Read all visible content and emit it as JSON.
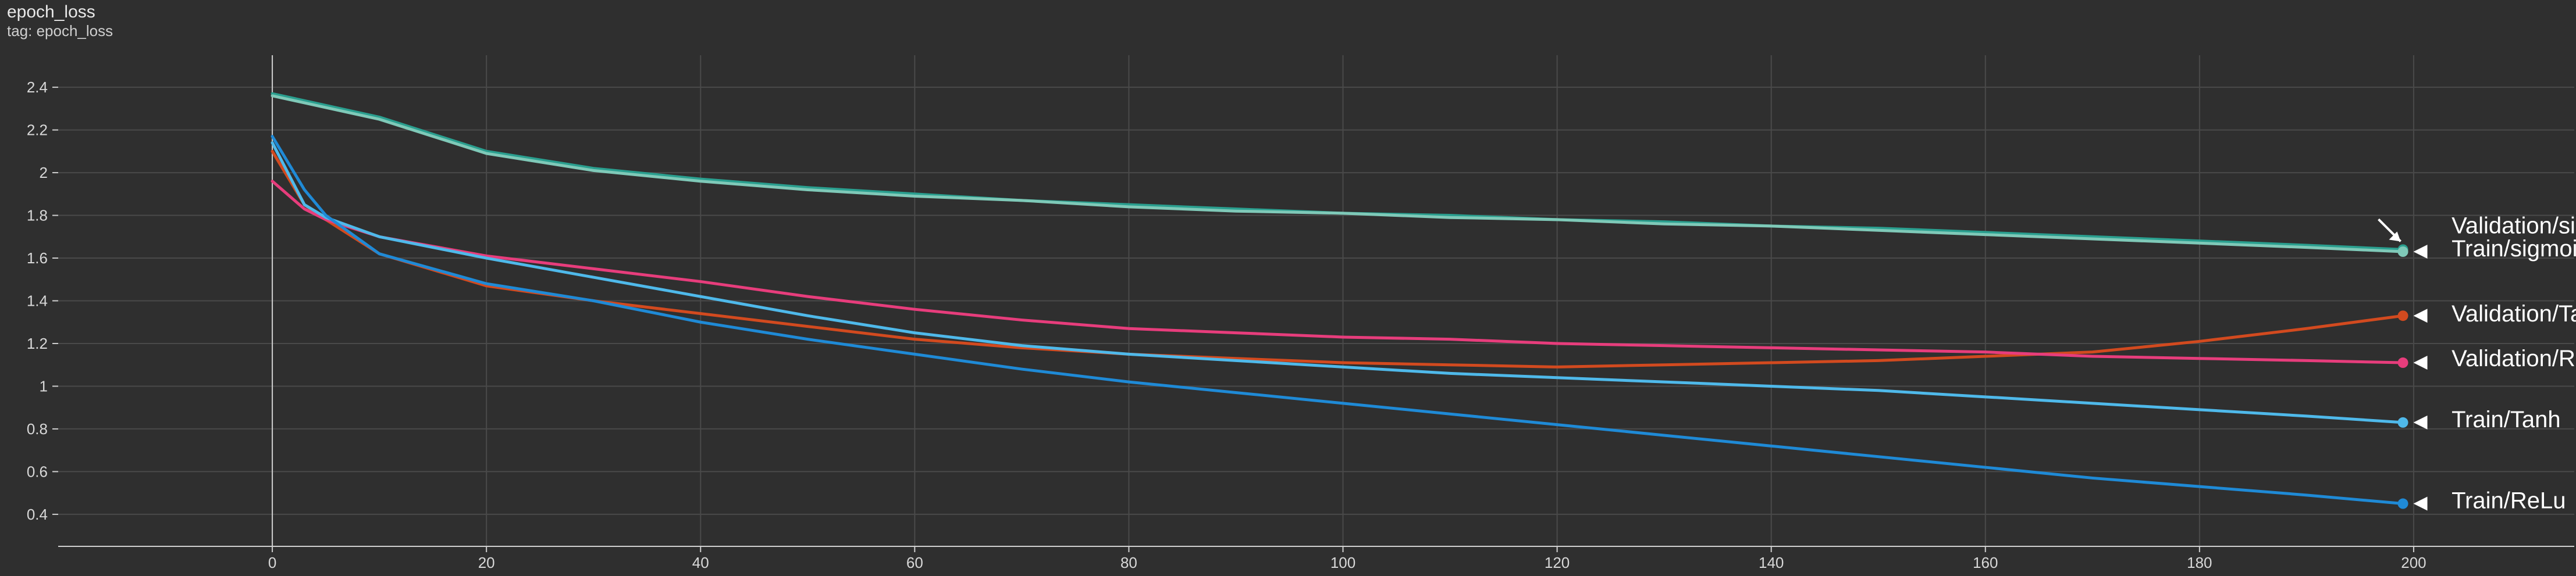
{
  "chart_data": {
    "type": "line",
    "title": "epoch_loss",
    "subtitle": "tag: epoch_loss",
    "xlim": [
      -20,
      215
    ],
    "ylim": [
      0.25,
      2.55
    ],
    "x_ticks": [
      0,
      20,
      40,
      60,
      80,
      100,
      120,
      140,
      160,
      180,
      200
    ],
    "y_ticks": [
      0.4,
      0.6,
      0.8,
      1,
      1.2,
      1.4,
      1.6,
      1.8,
      2,
      2.2,
      2.4
    ],
    "grid": true,
    "colors": {
      "background": "#2f2f2f",
      "grid": "#4a4a4a",
      "axis": "#d0d0d0",
      "validation_sigmoid": "#2a9f8f",
      "train_sigmoid": "#7fc9b8",
      "validation_tanh": "#d24a1f",
      "validation_relu": "#e73d7c",
      "train_tanh": "#4fb9ea",
      "train_relu": "#1f8ad6"
    },
    "series": [
      {
        "name": "Validation/sigmoid",
        "x": [
          0,
          10,
          20,
          30,
          40,
          50,
          60,
          70,
          80,
          90,
          100,
          110,
          120,
          130,
          140,
          150,
          160,
          170,
          180,
          190,
          199
        ],
        "values": [
          2.37,
          2.26,
          2.1,
          2.02,
          1.97,
          1.93,
          1.9,
          1.87,
          1.85,
          1.83,
          1.81,
          1.8,
          1.78,
          1.77,
          1.75,
          1.74,
          1.72,
          1.7,
          1.68,
          1.66,
          1.64
        ]
      },
      {
        "name": "Train/sigmoid",
        "x": [
          0,
          10,
          20,
          30,
          40,
          50,
          60,
          70,
          80,
          90,
          100,
          110,
          120,
          130,
          140,
          150,
          160,
          170,
          180,
          190,
          199
        ],
        "values": [
          2.36,
          2.25,
          2.09,
          2.01,
          1.96,
          1.92,
          1.89,
          1.87,
          1.84,
          1.82,
          1.81,
          1.79,
          1.78,
          1.76,
          1.75,
          1.73,
          1.71,
          1.69,
          1.67,
          1.65,
          1.63
        ]
      },
      {
        "name": "Validation/Tanh",
        "x": [
          0,
          3,
          5,
          10,
          20,
          30,
          40,
          50,
          60,
          70,
          80,
          90,
          100,
          110,
          120,
          130,
          140,
          150,
          160,
          170,
          180,
          190,
          199
        ],
        "values": [
          2.1,
          1.85,
          1.78,
          1.62,
          1.47,
          1.4,
          1.34,
          1.28,
          1.22,
          1.18,
          1.15,
          1.13,
          1.11,
          1.1,
          1.09,
          1.1,
          1.11,
          1.12,
          1.14,
          1.16,
          1.21,
          1.27,
          1.33
        ]
      },
      {
        "name": "Validation/ReLu",
        "x": [
          0,
          3,
          5,
          10,
          20,
          30,
          40,
          50,
          60,
          70,
          80,
          90,
          100,
          110,
          120,
          130,
          140,
          150,
          160,
          170,
          180,
          190,
          199
        ],
        "values": [
          1.96,
          1.83,
          1.78,
          1.7,
          1.61,
          1.55,
          1.49,
          1.42,
          1.36,
          1.31,
          1.27,
          1.25,
          1.23,
          1.22,
          1.2,
          1.19,
          1.18,
          1.17,
          1.16,
          1.14,
          1.13,
          1.12,
          1.11
        ]
      },
      {
        "name": "Train/Tanh",
        "x": [
          0,
          3,
          5,
          10,
          20,
          30,
          40,
          50,
          60,
          70,
          80,
          90,
          100,
          110,
          120,
          130,
          140,
          150,
          160,
          170,
          180,
          190,
          199
        ],
        "values": [
          2.14,
          1.85,
          1.79,
          1.7,
          1.6,
          1.51,
          1.42,
          1.33,
          1.25,
          1.19,
          1.15,
          1.12,
          1.09,
          1.06,
          1.04,
          1.02,
          1.0,
          0.98,
          0.95,
          0.92,
          0.89,
          0.86,
          0.83
        ]
      },
      {
        "name": "Train/ReLu",
        "x": [
          0,
          3,
          5,
          10,
          20,
          30,
          40,
          50,
          60,
          70,
          80,
          90,
          100,
          110,
          120,
          130,
          140,
          150,
          160,
          170,
          180,
          190,
          199
        ],
        "values": [
          2.17,
          1.92,
          1.8,
          1.62,
          1.48,
          1.4,
          1.3,
          1.22,
          1.15,
          1.08,
          1.02,
          0.97,
          0.92,
          0.87,
          0.82,
          0.77,
          0.72,
          0.67,
          0.62,
          0.57,
          0.53,
          0.49,
          0.45
        ]
      }
    ],
    "annotations": [
      {
        "text": "Validation/sigmoid",
        "series": "Validation/sigmoid",
        "arrow_style": "diagonal"
      },
      {
        "text": "Train/sigmoid",
        "series": "Train/sigmoid",
        "arrow_style": "left"
      },
      {
        "text": "Validation/Tanh",
        "series": "Validation/Tanh",
        "arrow_style": "left"
      },
      {
        "text": "Validation/ReLu",
        "series": "Validation/ReLu",
        "arrow_style": "left"
      },
      {
        "text": "Train/Tanh",
        "series": "Train/Tanh",
        "arrow_style": "left"
      },
      {
        "text": "Train/ReLu",
        "series": "Train/ReLu",
        "arrow_style": "left"
      }
    ]
  }
}
